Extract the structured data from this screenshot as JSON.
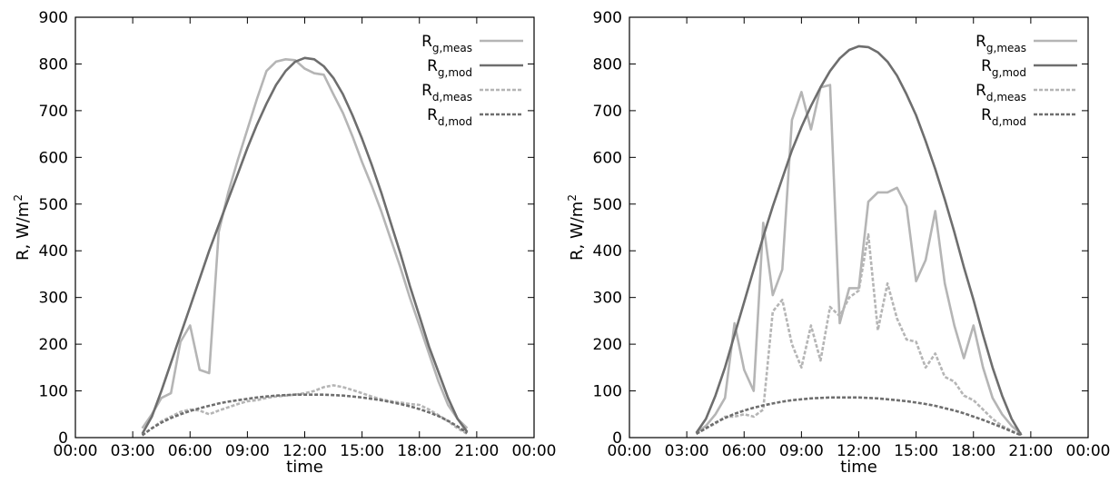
{
  "chart_data": [
    {
      "type": "line",
      "xlabel": "time",
      "ylabel": "R, W/m",
      "ylabel_sup": "2",
      "x_tick_labels": [
        "00:00",
        "03:00",
        "06:00",
        "09:00",
        "12:00",
        "15:00",
        "18:00",
        "21:00",
        "00:00"
      ],
      "xlim": [
        0,
        24
      ],
      "ylim": [
        0,
        900
      ],
      "y_ticks": [
        0,
        100,
        200,
        300,
        400,
        500,
        600,
        700,
        800,
        900
      ],
      "legend_position": "top-right",
      "grid": false,
      "series": [
        {
          "label_main": "R",
          "label_sub": "g,meas",
          "color": "#b5b5b5",
          "dashed": false,
          "x": [
            3.5,
            4.0,
            4.5,
            5.0,
            5.5,
            6.0,
            6.5,
            7.0,
            7.5,
            8.0,
            8.5,
            9.0,
            9.5,
            10.0,
            10.5,
            11.0,
            11.5,
            12.0,
            12.5,
            13.0,
            13.5,
            14.0,
            14.5,
            15.0,
            15.5,
            16.0,
            16.5,
            17.0,
            17.5,
            18.0,
            18.5,
            19.0,
            19.5,
            20.0,
            20.5
          ],
          "y": [
            20,
            50,
            85,
            95,
            205,
            240,
            145,
            138,
            440,
            525,
            595,
            660,
            725,
            785,
            805,
            810,
            808,
            790,
            780,
            777,
            735,
            695,
            645,
            590,
            540,
            485,
            425,
            365,
            300,
            240,
            180,
            120,
            70,
            40,
            20
          ]
        },
        {
          "label_main": "R",
          "label_sub": "g,mod",
          "color": "#6e6e6e",
          "dashed": false,
          "x": [
            3.5,
            4.0,
            4.5,
            5.0,
            5.5,
            6.0,
            6.5,
            7.0,
            7.5,
            8.0,
            8.5,
            9.0,
            9.5,
            10.0,
            10.5,
            11.0,
            11.5,
            12.0,
            12.5,
            13.0,
            13.5,
            14.0,
            14.5,
            15.0,
            15.5,
            16.0,
            16.5,
            17.0,
            17.5,
            18.0,
            18.5,
            19.0,
            19.5,
            20.0,
            20.5
          ],
          "y": [
            8,
            45,
            100,
            160,
            220,
            280,
            340,
            400,
            455,
            510,
            565,
            620,
            670,
            715,
            755,
            785,
            805,
            813,
            810,
            795,
            770,
            735,
            690,
            640,
            585,
            525,
            460,
            395,
            325,
            260,
            195,
            140,
            85,
            40,
            12
          ]
        },
        {
          "label_main": "R",
          "label_sub": "d,meas",
          "color": "#b5b5b5",
          "dashed": true,
          "x": [
            3.5,
            4.0,
            4.5,
            5.0,
            5.5,
            6.0,
            6.5,
            7.0,
            7.5,
            8.0,
            8.5,
            9.0,
            9.5,
            10.0,
            10.5,
            11.0,
            11.5,
            12.0,
            12.5,
            13.0,
            13.5,
            14.0,
            14.5,
            15.0,
            15.5,
            16.0,
            16.5,
            17.0,
            17.5,
            18.0,
            18.5,
            19.0,
            19.5,
            20.0,
            20.5
          ],
          "y": [
            5,
            20,
            35,
            45,
            55,
            60,
            58,
            50,
            58,
            65,
            72,
            78,
            80,
            85,
            88,
            90,
            92,
            95,
            100,
            108,
            112,
            108,
            102,
            95,
            88,
            82,
            78,
            75,
            72,
            70,
            60,
            48,
            35,
            20,
            8
          ]
        },
        {
          "label_main": "R",
          "label_sub": "d,mod",
          "color": "#6e6e6e",
          "dashed": true,
          "x": [
            3.5,
            4.0,
            4.5,
            5.0,
            5.5,
            6.0,
            6.5,
            7.0,
            7.5,
            8.0,
            8.5,
            9.0,
            9.5,
            10.0,
            10.5,
            11.0,
            11.5,
            12.0,
            12.5,
            13.0,
            13.5,
            14.0,
            14.5,
            15.0,
            15.5,
            16.0,
            16.5,
            17.0,
            17.5,
            18.0,
            18.5,
            19.0,
            19.5,
            20.0,
            20.5
          ],
          "y": [
            5,
            20,
            32,
            42,
            50,
            57,
            63,
            68,
            73,
            77,
            80,
            83,
            86,
            88,
            90,
            91,
            92,
            92,
            92,
            92,
            91,
            90,
            88,
            86,
            83,
            80,
            76,
            72,
            67,
            61,
            54,
            46,
            36,
            24,
            10
          ]
        }
      ]
    },
    {
      "type": "line",
      "xlabel": "time",
      "ylabel": "R, W/m",
      "ylabel_sup": "2",
      "x_tick_labels": [
        "00:00",
        "03:00",
        "06:00",
        "09:00",
        "12:00",
        "15:00",
        "18:00",
        "21:00",
        "00:00"
      ],
      "xlim": [
        0,
        24
      ],
      "ylim": [
        0,
        900
      ],
      "y_ticks": [
        0,
        100,
        200,
        300,
        400,
        500,
        600,
        700,
        800,
        900
      ],
      "legend_position": "top-right",
      "grid": false,
      "series": [
        {
          "label_main": "R",
          "label_sub": "g,meas",
          "color": "#b5b5b5",
          "dashed": false,
          "x": [
            3.5,
            4.0,
            4.5,
            5.0,
            5.5,
            6.0,
            6.5,
            7.0,
            7.5,
            8.0,
            8.5,
            9.0,
            9.5,
            10.0,
            10.5,
            11.0,
            11.5,
            12.0,
            12.5,
            13.0,
            13.5,
            14.0,
            14.5,
            15.0,
            15.5,
            16.0,
            16.5,
            17.0,
            17.5,
            18.0,
            18.5,
            19.0,
            19.5,
            20.0,
            20.5
          ],
          "y": [
            10,
            25,
            50,
            85,
            245,
            145,
            100,
            460,
            305,
            360,
            680,
            740,
            660,
            750,
            755,
            245,
            320,
            320,
            505,
            525,
            525,
            535,
            495,
            335,
            380,
            485,
            330,
            240,
            170,
            240,
            150,
            85,
            50,
            25,
            8
          ]
        },
        {
          "label_main": "R",
          "label_sub": "g,mod",
          "color": "#6e6e6e",
          "dashed": false,
          "x": [
            3.5,
            4.0,
            4.5,
            5.0,
            5.5,
            6.0,
            6.5,
            7.0,
            7.5,
            8.0,
            8.5,
            9.0,
            9.5,
            10.0,
            10.5,
            11.0,
            11.5,
            12.0,
            12.5,
            13.0,
            13.5,
            14.0,
            14.5,
            15.0,
            15.5,
            16.0,
            16.5,
            17.0,
            17.5,
            18.0,
            18.5,
            19.0,
            19.5,
            20.0,
            20.5
          ],
          "y": [
            10,
            40,
            90,
            150,
            220,
            290,
            360,
            430,
            495,
            555,
            615,
            665,
            710,
            750,
            785,
            812,
            830,
            838,
            836,
            825,
            805,
            775,
            735,
            690,
            635,
            575,
            510,
            440,
            365,
            295,
            220,
            150,
            90,
            40,
            5
          ]
        },
        {
          "label_main": "R",
          "label_sub": "d,meas",
          "color": "#b5b5b5",
          "dashed": true,
          "x": [
            3.5,
            4.0,
            4.5,
            5.0,
            5.5,
            6.0,
            6.5,
            7.0,
            7.5,
            8.0,
            8.5,
            9.0,
            9.5,
            10.0,
            10.5,
            11.0,
            11.5,
            12.0,
            12.5,
            13.0,
            13.5,
            14.0,
            14.5,
            15.0,
            15.5,
            16.0,
            16.5,
            17.0,
            17.5,
            18.0,
            18.5,
            19.0,
            19.5,
            20.0,
            20.5
          ],
          "y": [
            8,
            20,
            30,
            45,
            45,
            50,
            45,
            60,
            270,
            295,
            200,
            150,
            240,
            165,
            280,
            260,
            300,
            315,
            435,
            230,
            330,
            255,
            210,
            205,
            150,
            180,
            130,
            120,
            90,
            80,
            60,
            40,
            25,
            15,
            5
          ]
        },
        {
          "label_main": "R",
          "label_sub": "d,mod",
          "color": "#6e6e6e",
          "dashed": true,
          "x": [
            3.5,
            4.0,
            4.5,
            5.0,
            5.5,
            6.0,
            6.5,
            7.0,
            7.5,
            8.0,
            8.5,
            9.0,
            9.5,
            10.0,
            10.5,
            11.0,
            11.5,
            12.0,
            12.5,
            13.0,
            13.5,
            14.0,
            14.5,
            15.0,
            15.5,
            16.0,
            16.5,
            17.0,
            17.5,
            18.0,
            18.5,
            19.0,
            19.5,
            20.0,
            20.5
          ],
          "y": [
            8,
            20,
            32,
            42,
            51,
            58,
            64,
            69,
            73,
            77,
            80,
            82,
            84,
            85,
            86,
            86,
            86,
            86,
            85,
            84,
            82,
            80,
            78,
            75,
            72,
            68,
            63,
            58,
            52,
            45,
            38,
            30,
            22,
            13,
            5
          ]
        }
      ]
    }
  ]
}
